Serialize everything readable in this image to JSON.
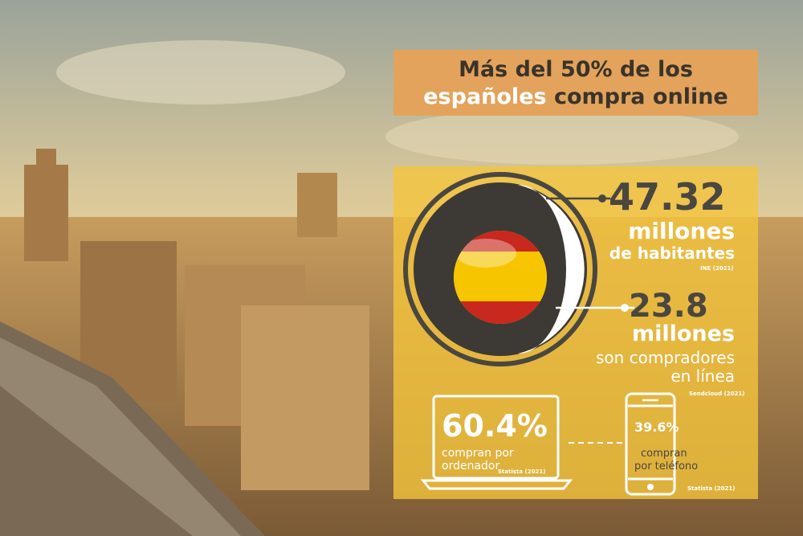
{
  "title": {
    "line1": "Más del 50% de los",
    "line2_highlight": "españoles",
    "line2_rest": " compra online"
  },
  "population": {
    "value": "47.32",
    "unit": "millones",
    "label": "de habitantes",
    "source": "INE (2021)"
  },
  "online_buyers": {
    "value": "23.8",
    "unit": "millones",
    "label_line1": "son compradores",
    "label_line2": "en línea",
    "source": "Sendcloud (2021)"
  },
  "computer": {
    "value": "60.4%",
    "label_line1": "compran por",
    "label_line2": "ordenador",
    "source": "Statista (2021)",
    "icon": "laptop-icon"
  },
  "phone": {
    "value": "39.6%",
    "label_line1": "compran",
    "label_line2": "por teléfono",
    "source": "Statista (2021)",
    "icon": "smartphone-icon"
  },
  "colors": {
    "title_bg": "#e3a35c",
    "panel_bg": "#f4c43c",
    "dark": "#4a4640",
    "flag_red": "#c8281e",
    "flag_yellow": "#f6c500"
  }
}
